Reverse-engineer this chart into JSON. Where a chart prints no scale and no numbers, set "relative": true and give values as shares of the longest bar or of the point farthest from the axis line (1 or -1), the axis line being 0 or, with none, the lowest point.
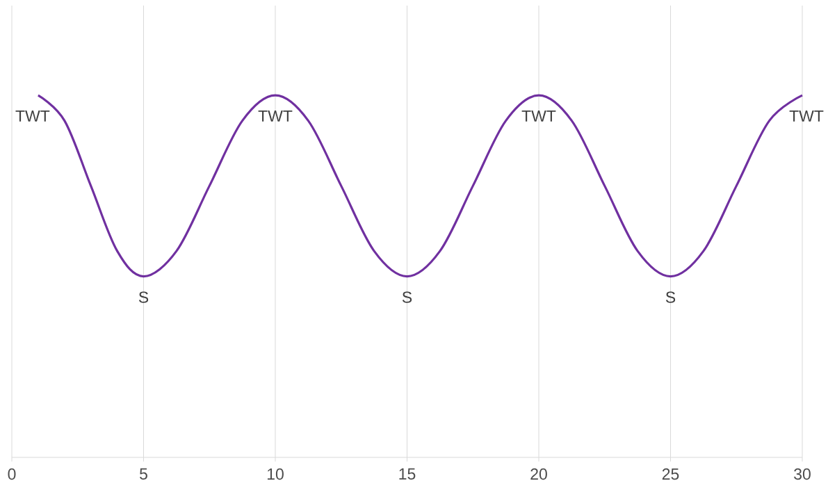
{
  "chart_data": {
    "type": "line",
    "relative": true,
    "x": [
      1,
      2,
      3,
      4,
      5,
      6.25,
      7.5,
      8.75,
      10,
      11.25,
      12.5,
      13.75,
      15,
      16.25,
      17.5,
      18.75,
      20,
      21.25,
      22.5,
      23.75,
      25,
      26.25,
      27.5,
      28.75,
      30
    ],
    "series": [
      {
        "color": "#7030a0",
        "values": [
          1,
          0.93,
          0.75,
          0.57,
          0.5,
          0.57,
          0.75,
          0.93,
          1,
          0.93,
          0.75,
          0.57,
          0.5,
          0.57,
          0.75,
          0.93,
          1,
          0.93,
          0.75,
          0.57,
          0.5,
          0.57,
          0.75,
          0.93,
          1
        ]
      }
    ],
    "xlim": [
      0,
      30
    ],
    "xticks": [
      0,
      5,
      10,
      15,
      20,
      25,
      30
    ],
    "grid": "x",
    "annotations": [
      {
        "text": "TWT",
        "x": 1,
        "y": 1
      },
      {
        "text": "S",
        "x": 5,
        "y": 0.5
      },
      {
        "text": "TWT",
        "x": 10,
        "y": 1
      },
      {
        "text": "S",
        "x": 15,
        "y": 0.5
      },
      {
        "text": "TWT",
        "x": 20,
        "y": 1
      },
      {
        "text": "S",
        "x": 25,
        "y": 0.5
      },
      {
        "text": "TWT",
        "x": 30,
        "y": 1
      }
    ]
  }
}
